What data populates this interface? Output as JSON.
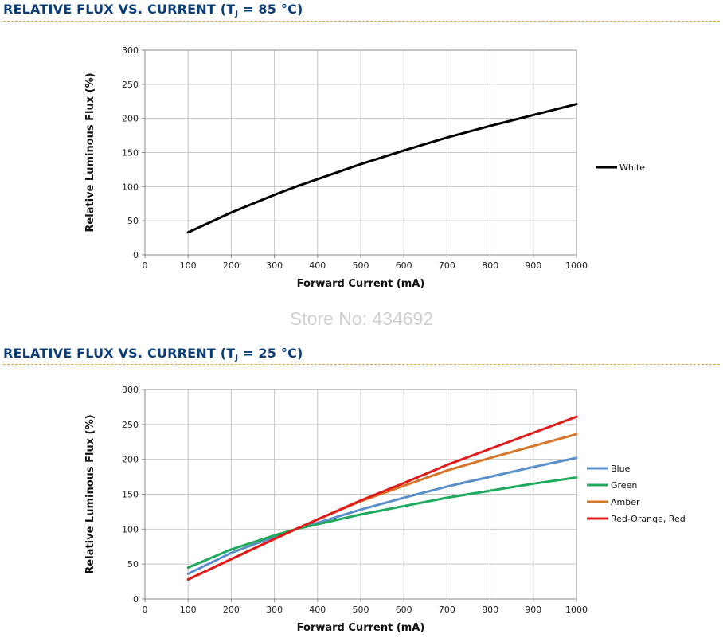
{
  "watermark": "Store No: 434692",
  "chart_data": [
    {
      "type": "line",
      "title_prefix": "RELATIVE FLUX VS. CURRENT (T",
      "title_sub": "J",
      "title_suffix": " = 85 °C)",
      "xlabel": "Forward Current (mA)",
      "ylabel": "Relative Luminous Flux (%)",
      "xlim": [
        0,
        1000
      ],
      "ylim": [
        0,
        300
      ],
      "xticks": [
        0,
        100,
        200,
        300,
        400,
        500,
        600,
        700,
        800,
        900,
        1000
      ],
      "yticks": [
        0,
        50,
        100,
        150,
        200,
        250,
        300
      ],
      "grid": true,
      "legend_position": "right",
      "series": [
        {
          "name": "White",
          "color": "#000000",
          "x": [
            100,
            200,
            300,
            350,
            400,
            500,
            600,
            700,
            800,
            900,
            1000
          ],
          "values": [
            33,
            62,
            88,
            100,
            111,
            133,
            153,
            172,
            189,
            205,
            221
          ]
        }
      ]
    },
    {
      "type": "line",
      "title_prefix": "RELATIVE FLUX VS. CURRENT (T",
      "title_sub": "J",
      "title_suffix": " = 25 °C)",
      "xlabel": "Forward Current (mA)",
      "ylabel": "Relative Luminous Flux (%)",
      "xlim": [
        0,
        1000
      ],
      "ylim": [
        0,
        300
      ],
      "xticks": [
        0,
        100,
        200,
        300,
        400,
        500,
        600,
        700,
        800,
        900,
        1000
      ],
      "yticks": [
        0,
        50,
        100,
        150,
        200,
        250,
        300
      ],
      "grid": true,
      "legend_position": "right",
      "series": [
        {
          "name": "Blue",
          "color": "#5b8fc9",
          "x": [
            100,
            200,
            300,
            350,
            400,
            500,
            600,
            700,
            800,
            900,
            1000
          ],
          "values": [
            36,
            66,
            89,
            100,
            109,
            128,
            145,
            161,
            175,
            189,
            202
          ]
        },
        {
          "name": "Green",
          "color": "#1faa5c",
          "x": [
            100,
            200,
            300,
            350,
            400,
            500,
            600,
            700,
            800,
            900,
            1000
          ],
          "values": [
            45,
            71,
            91,
            100,
            107,
            121,
            133,
            145,
            155,
            165,
            174
          ]
        },
        {
          "name": "Amber",
          "color": "#d6762a",
          "x": [
            100,
            200,
            300,
            350,
            400,
            500,
            600,
            700,
            800,
            900,
            1000
          ],
          "values": [
            28,
            57,
            86,
            100,
            114,
            140,
            162,
            184,
            202,
            219,
            236
          ]
        },
        {
          "name": "Red-Orange, Red",
          "color": "#e01b1b",
          "x": [
            100,
            200,
            300,
            350,
            400,
            500,
            600,
            700,
            800,
            900,
            1000
          ],
          "values": [
            28,
            57,
            86,
            100,
            114,
            141,
            166,
            192,
            215,
            238,
            261
          ]
        }
      ]
    }
  ]
}
